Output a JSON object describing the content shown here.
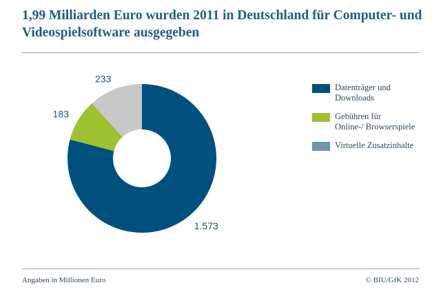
{
  "title": "1,99 Milliarden Euro wurden 2011 in Deutschland für Computer- und Videospielsoftware ausgegeben",
  "footer": {
    "note": "Angaben in Millionen Euro",
    "source": "© BIU/GfK 2012"
  },
  "colors": {
    "title": "#1f5e82",
    "rule": "#8fa8b6",
    "legend_swatch_3": "#6d96aa"
  },
  "chart_data": {
    "type": "pie",
    "variant": "donut",
    "title": "1,99 Milliarden Euro wurden 2011 in Deutschland für Computer- und Videospielsoftware ausgegeben",
    "unit": "Millionen Euro",
    "legend_position": "right",
    "slices": [
      {
        "name": "Datenträger und Downloads",
        "value": 1573,
        "label": "1.573",
        "color": "#00507e"
      },
      {
        "name": "Gebühren für Online-/ Browserspiele",
        "value": 183,
        "label": "183",
        "color": "#9fc131"
      },
      {
        "name": "Virtuelle Zusatzinhalte",
        "value": 233,
        "label": "233",
        "color": "#c8c8c8"
      }
    ],
    "legend": [
      {
        "lines": [
          "Datenträger und",
          "Downloads"
        ],
        "color": "#00507e"
      },
      {
        "lines": [
          "Gebühren für",
          "Online-/ Browserspiele"
        ],
        "color": "#9fc131"
      },
      {
        "lines": [
          "Virtuelle Zusatzinhalte"
        ],
        "color": "#6d96aa"
      }
    ]
  }
}
